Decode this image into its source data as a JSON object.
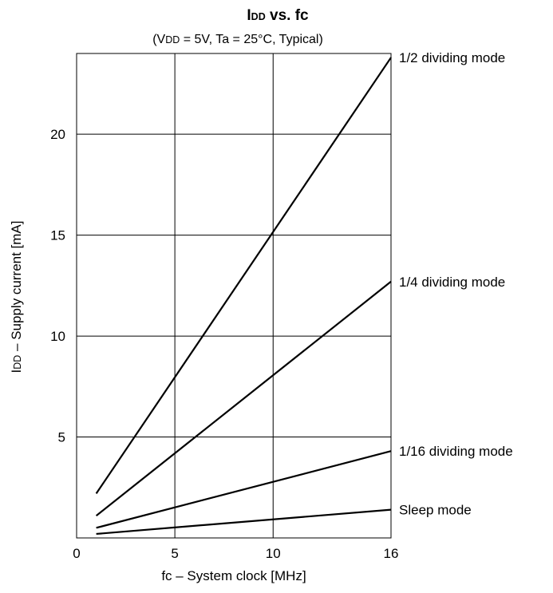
{
  "chart_data": {
    "type": "line",
    "title": {
      "main": "DD",
      "prefix": "I",
      "rest": " vs.  fc"
    },
    "subtitle": {
      "open": "(V",
      "sub": "DD",
      "rest": " = 5V, Ta = 25°C, Typical)"
    },
    "xlabel": "fc – System clock  [MHz]",
    "ylabel": {
      "prefix": "I",
      "sub": "DD",
      "rest": " – Supply current  [mA]"
    },
    "xlim": [
      0,
      16
    ],
    "ylim": [
      0,
      24
    ],
    "x_ticks": [
      {
        "value": 0,
        "label": "0"
      },
      {
        "value": 5,
        "label": "5"
      },
      {
        "value": 10,
        "label": "10"
      },
      {
        "value": 16,
        "label": "16"
      }
    ],
    "y_ticks": [
      {
        "value": 5,
        "label": "5"
      },
      {
        "value": 10,
        "label": "10"
      },
      {
        "value": 15,
        "label": "15"
      },
      {
        "value": 20,
        "label": "20"
      }
    ],
    "grid": true,
    "series": [
      {
        "name": "1/2 dividing mode",
        "x": [
          1,
          16
        ],
        "y": [
          2.2,
          23.8
        ]
      },
      {
        "name": "1/4 dividing mode",
        "x": [
          1,
          16
        ],
        "y": [
          1.1,
          12.7
        ]
      },
      {
        "name": "1/16 dividing mode",
        "x": [
          1,
          16
        ],
        "y": [
          0.5,
          4.3
        ]
      },
      {
        "name": "Sleep mode",
        "x": [
          1,
          16
        ],
        "y": [
          0.2,
          1.4
        ]
      }
    ]
  }
}
